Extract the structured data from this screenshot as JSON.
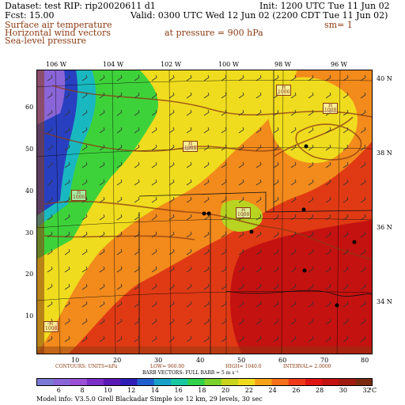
{
  "header": {
    "line1_left": "Dataset: test  RIP: rip20020611 d1",
    "line1_right": "Init: 1200 UTC Tue 11 Jun 02",
    "line2_left": "Fcst:   15.00",
    "line2_right": "Valid: 0300 UTC Wed 12 Jun 02 (2200 CDT Tue 11 Jun 02)",
    "fields": [
      "Surface air temperature",
      "Horizontal wind vectors",
      "Sea-level pressure"
    ],
    "pressure": "at pressure =  900 hPa",
    "smoothing": "sm= 1"
  },
  "axes": {
    "top_lon": [
      "106 W",
      "104 W",
      "102 W",
      "100 W",
      "98 W",
      "96 W"
    ],
    "right_lat": [
      "40 N",
      "38 N",
      "36 N",
      "34 N"
    ],
    "left_ticks": [
      "60",
      "50",
      "40",
      "30",
      "20",
      "10"
    ],
    "bottom_ticks": [
      "10",
      "20",
      "30",
      "40",
      "50",
      "60",
      "70",
      "80"
    ]
  },
  "highs": [
    "H\n1006",
    "H\n1008",
    "H\n1008",
    "H\n1008",
    "H\n1006",
    "H\n1008"
  ],
  "contour_info": {
    "contours": "CONTOURS:  UNITS=hPa",
    "low": "LOW=  960.00",
    "high": "HIGH=  1040.0",
    "interval": "INTERVAL=   2.0000"
  },
  "barb_info": "BARB VECTORS:  FULL BARB = 5 m s⁻¹",
  "colorbar": {
    "labels": [
      "6",
      "8",
      "10",
      "12",
      "14",
      "16",
      "18",
      "20",
      "22",
      "24",
      "26",
      "28",
      "30",
      "32"
    ],
    "unit": "°C",
    "colors": [
      "#7b7bd6",
      "#8a65d8",
      "#9a4fd6",
      "#7a2fc8",
      "#5a19b4",
      "#2f1fb8",
      "#1f5fd0",
      "#19a0c8",
      "#17c8a0",
      "#2fd24a",
      "#7cd12a",
      "#c8d41e",
      "#f0dc1e",
      "#f7a21a",
      "#f4701a",
      "#ee3a18",
      "#e01414",
      "#c41210",
      "#a01b10",
      "#7a2a0f"
    ]
  },
  "footer": "Model info: V3.5.0   Grell      Blackadar  Simple ice     12 km,  29 levels,    30 sec"
}
